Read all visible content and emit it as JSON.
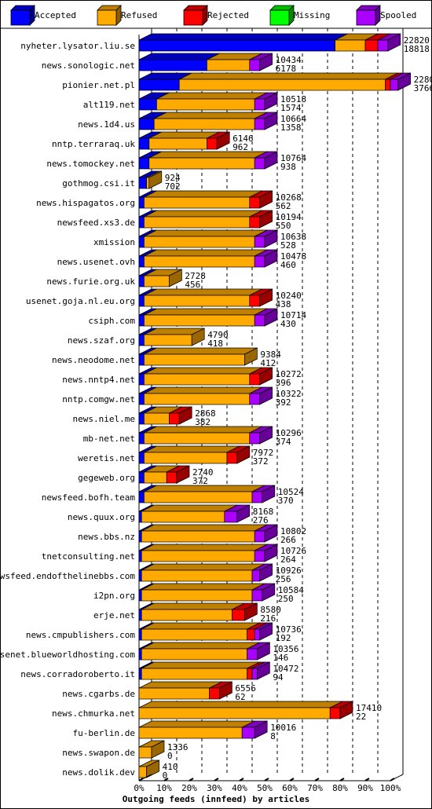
{
  "chart_data": {
    "type": "bar",
    "orientation": "horizontal",
    "stacked": true,
    "xlabel": "Outgoing feeds (innfeed) by articles",
    "xlim": [
      0,
      100
    ],
    "x_ticks": [
      "0%",
      "10%",
      "20%",
      "30%",
      "40%",
      "50%",
      "60%",
      "70%",
      "80%",
      "90%",
      "100%"
    ],
    "legend_position": "top",
    "series": [
      {
        "name": "Accepted",
        "color": "#0000ff"
      },
      {
        "name": "Refused",
        "color": "#ffaa00"
      },
      {
        "name": "Rejected",
        "color": "#ff0000"
      },
      {
        "name": "Missing",
        "color": "#00ff00"
      },
      {
        "name": "Spooled",
        "color": "#aa00ff"
      }
    ],
    "categories": [
      {
        "name": "nyheter.lysator.liu.se",
        "offered": "22820",
        "accepted": "18818",
        "pct": [
          78,
          12,
          5,
          0,
          4
        ]
      },
      {
        "name": "news.sonologic.net",
        "offered": "10434",
        "accepted": "6178",
        "pct": [
          27,
          17,
          0,
          0,
          4
        ]
      },
      {
        "name": "pionier.net.pl",
        "offered": "22802",
        "accepted": "3766",
        "pct": [
          16,
          82,
          2,
          0,
          3
        ]
      },
      {
        "name": "alt119.net",
        "offered": "10518",
        "accepted": "1574",
        "pct": [
          7,
          39,
          0,
          0,
          4
        ]
      },
      {
        "name": "news.1d4.us",
        "offered": "10664",
        "accepted": "1358",
        "pct": [
          6,
          40,
          0,
          0,
          4
        ]
      },
      {
        "name": "nntp.terraraq.uk",
        "offered": "6146",
        "accepted": "962",
        "pct": [
          4,
          23,
          4,
          0,
          0
        ]
      },
      {
        "name": "news.tomockey.net",
        "offered": "10764",
        "accepted": "938",
        "pct": [
          4,
          42,
          0,
          0,
          4
        ]
      },
      {
        "name": "gothmog.csi.it",
        "offered": "924",
        "accepted": "702",
        "pct": [
          3,
          1,
          0,
          0,
          0
        ]
      },
      {
        "name": "news.hispagatos.org",
        "offered": "10268",
        "accepted": "562",
        "pct": [
          2,
          42,
          4,
          0,
          0
        ]
      },
      {
        "name": "newsfeed.xs3.de",
        "offered": "10194",
        "accepted": "550",
        "pct": [
          2,
          42,
          4,
          0,
          0
        ]
      },
      {
        "name": "xmission",
        "offered": "10638",
        "accepted": "528",
        "pct": [
          2,
          44,
          0,
          0,
          4
        ]
      },
      {
        "name": "news.usenet.ovh",
        "offered": "10478",
        "accepted": "460",
        "pct": [
          2,
          44,
          0,
          0,
          4
        ]
      },
      {
        "name": "news.furie.org.uk",
        "offered": "2728",
        "accepted": "456",
        "pct": [
          2,
          10,
          0,
          0,
          0
        ]
      },
      {
        "name": "usenet.goja.nl.eu.org",
        "offered": "10240",
        "accepted": "438",
        "pct": [
          2,
          42,
          4,
          0,
          0
        ]
      },
      {
        "name": "csiph.com",
        "offered": "10714",
        "accepted": "430",
        "pct": [
          2,
          44,
          0,
          0,
          4
        ]
      },
      {
        "name": "news.szaf.org",
        "offered": "4790",
        "accepted": "418",
        "pct": [
          2,
          19,
          0,
          0,
          0
        ]
      },
      {
        "name": "news.neodome.net",
        "offered": "9384",
        "accepted": "412",
        "pct": [
          2,
          40,
          0,
          0,
          0
        ]
      },
      {
        "name": "news.nntp4.net",
        "offered": "10272",
        "accepted": "396",
        "pct": [
          2,
          42,
          4,
          0,
          0
        ]
      },
      {
        "name": "nntp.comgw.net",
        "offered": "10322",
        "accepted": "392",
        "pct": [
          2,
          42,
          0,
          0,
          4
        ]
      },
      {
        "name": "news.niel.me",
        "offered": "2868",
        "accepted": "382",
        "pct": [
          2,
          10,
          4,
          0,
          0
        ]
      },
      {
        "name": "mb-net.net",
        "offered": "10296",
        "accepted": "374",
        "pct": [
          2,
          42,
          0,
          0,
          4
        ]
      },
      {
        "name": "weretis.net",
        "offered": "7972",
        "accepted": "372",
        "pct": [
          2,
          33,
          4,
          0,
          0
        ]
      },
      {
        "name": "gegeweb.org",
        "offered": "2740",
        "accepted": "372",
        "pct": [
          2,
          9,
          4,
          0,
          0
        ]
      },
      {
        "name": "newsfeed.bofh.team",
        "offered": "10524",
        "accepted": "370",
        "pct": [
          2,
          43,
          0,
          0,
          4
        ]
      },
      {
        "name": "news.quux.org",
        "offered": "8168",
        "accepted": "276",
        "pct": [
          1,
          33,
          0,
          0,
          5
        ]
      },
      {
        "name": "news.bbs.nz",
        "offered": "10802",
        "accepted": "266",
        "pct": [
          1,
          45,
          0,
          0,
          4
        ]
      },
      {
        "name": "tnetconsulting.net",
        "offered": "10726",
        "accepted": "264",
        "pct": [
          1,
          45,
          0,
          0,
          4
        ]
      },
      {
        "name": "newsfeed.endofthelinebbs.com",
        "offered": "10926",
        "accepted": "256",
        "pct": [
          1,
          44,
          0,
          0,
          3
        ]
      },
      {
        "name": "i2pn.org",
        "offered": "10584",
        "accepted": "250",
        "pct": [
          1,
          44,
          0,
          0,
          4
        ]
      },
      {
        "name": "erje.net",
        "offered": "8580",
        "accepted": "216",
        "pct": [
          1,
          36,
          5,
          0,
          0
        ]
      },
      {
        "name": "news.cmpublishers.com",
        "offered": "10736",
        "accepted": "192",
        "pct": [
          1,
          42,
          3,
          0,
          2
        ]
      },
      {
        "name": "usenet.blueworldhosting.com",
        "offered": "10356",
        "accepted": "146",
        "pct": [
          1,
          42,
          0,
          0,
          4
        ]
      },
      {
        "name": "news.corradoroberto.it",
        "offered": "10472",
        "accepted": "94",
        "pct": [
          1,
          42,
          2,
          0,
          2
        ]
      },
      {
        "name": "news.cgarbs.de",
        "offered": "6556",
        "accepted": "62",
        "pct": [
          0,
          28,
          4,
          0,
          0
        ]
      },
      {
        "name": "news.chmurka.net",
        "offered": "17410",
        "accepted": "22",
        "pct": [
          0,
          76,
          4,
          0,
          0
        ]
      },
      {
        "name": "fu-berlin.de",
        "offered": "10016",
        "accepted": "8",
        "pct": [
          0,
          41,
          0,
          0,
          5
        ]
      },
      {
        "name": "news.swapon.de",
        "offered": "1336",
        "accepted": "0",
        "pct": [
          0,
          5,
          0,
          0,
          0
        ]
      },
      {
        "name": "news.dolik.dev",
        "offered": "410",
        "accepted": "0",
        "pct": [
          0,
          3,
          0,
          0,
          0
        ]
      }
    ]
  }
}
